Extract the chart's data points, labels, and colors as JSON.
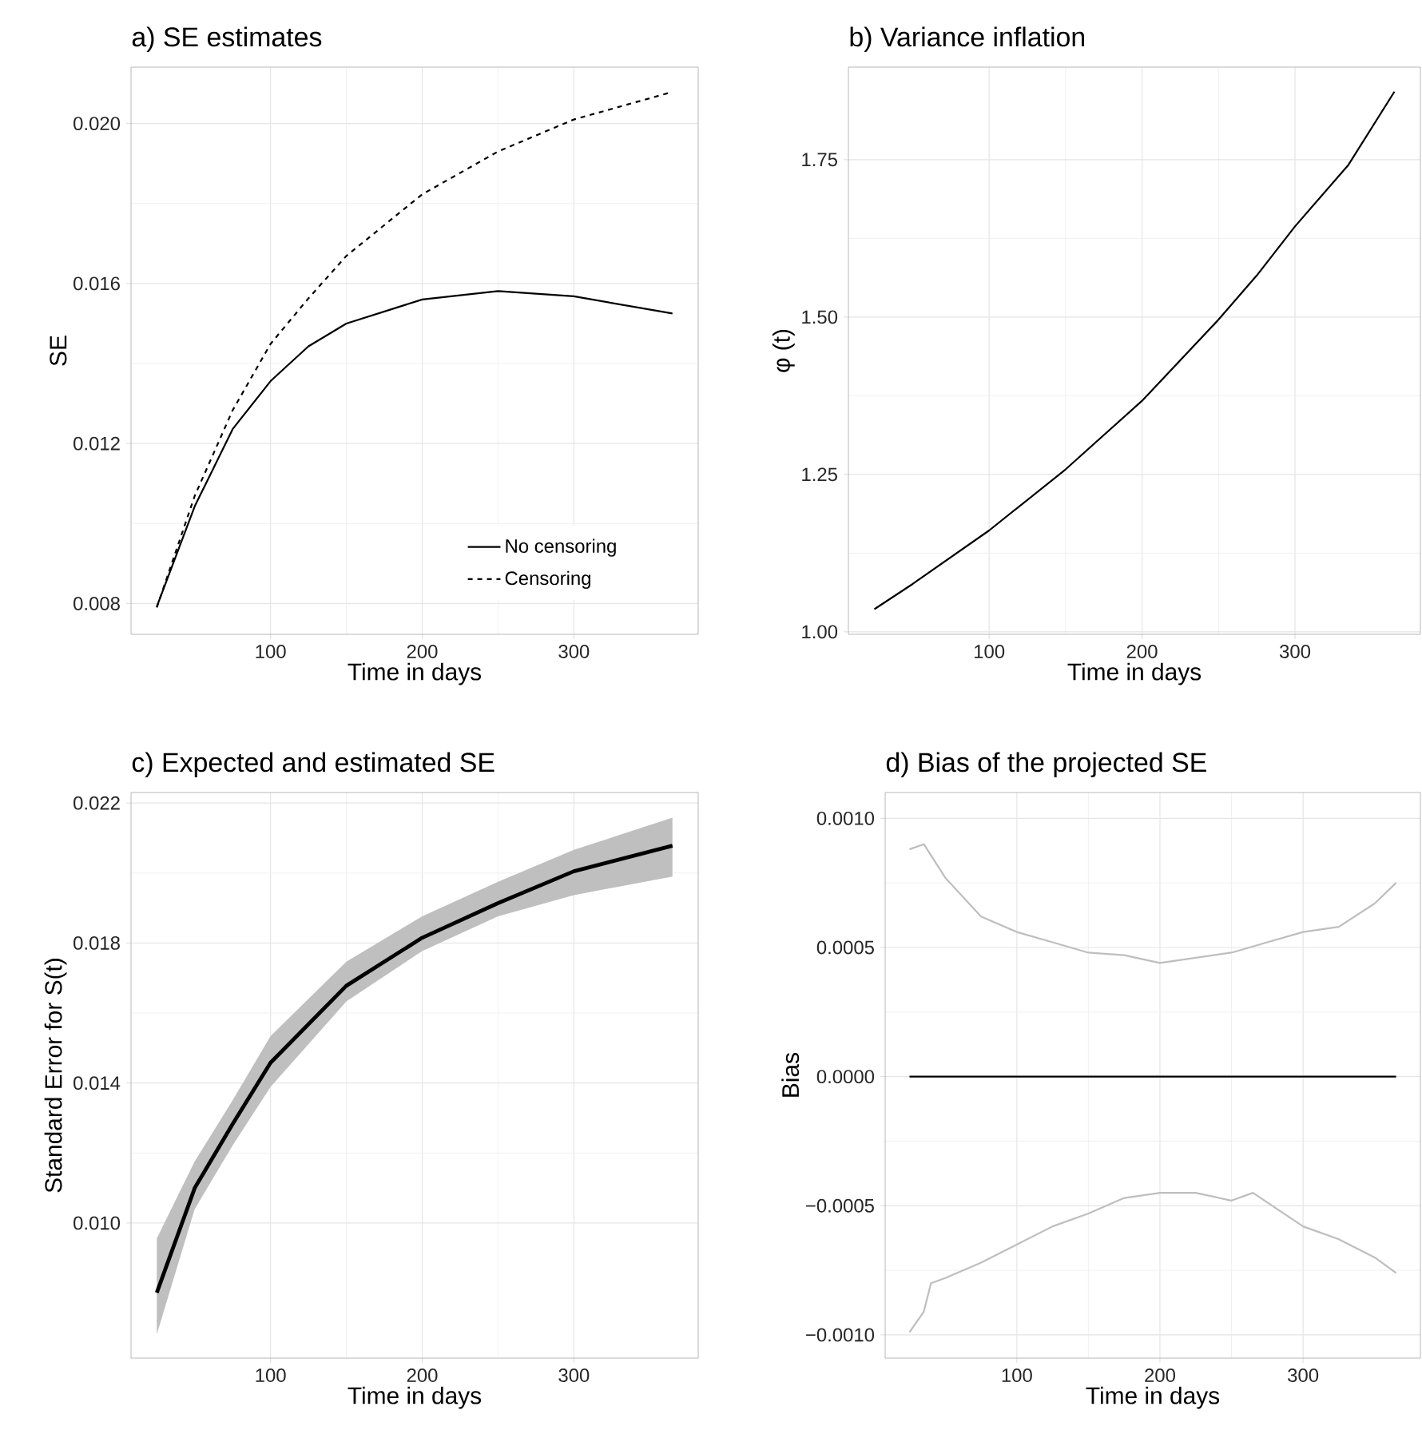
{
  "chart_data": [
    {
      "type": "line",
      "title": "a) SE estimates",
      "xlabel": "Time in days",
      "ylabel": "SE",
      "grid": true,
      "legend": "bottom right",
      "xlim": [
        8,
        382
      ],
      "xticks": [
        100,
        200,
        300
      ],
      "ylim": [
        0.00723,
        0.02141
      ],
      "yticks": [
        {
          "value": 0.008,
          "label": "0.008"
        },
        {
          "value": 0.012,
          "label": "0.012"
        },
        {
          "value": 0.016,
          "label": "0.016"
        },
        {
          "value": 0.02,
          "label": "0.020"
        }
      ],
      "series": [
        {
          "name": "No censoring",
          "color": "#000000",
          "line_style": "solid",
          "x": [
            25,
            50,
            75,
            100,
            125,
            150,
            200,
            250,
            300,
            365
          ],
          "values": [
            0.00792,
            0.01043,
            0.01236,
            0.01356,
            0.01443,
            0.015,
            0.0156,
            0.01581,
            0.01568,
            0.01525
          ]
        },
        {
          "name": "Censoring",
          "color": "#000000",
          "line_style": "dashed",
          "x": [
            25,
            50,
            75,
            100,
            125,
            150,
            200,
            250,
            300,
            365
          ],
          "values": [
            0.0079,
            0.01069,
            0.01283,
            0.01449,
            0.01563,
            0.01669,
            0.01823,
            0.0193,
            0.0201,
            0.02079
          ]
        }
      ]
    },
    {
      "type": "line",
      "title": "b) Variance inflation",
      "xlabel": "Time in days",
      "ylabel": "φ (t)",
      "grid": true,
      "xlim": [
        8,
        382
      ],
      "xticks": [
        100,
        200,
        300
      ],
      "ylim": [
        0.996,
        1.897
      ],
      "yticks": [
        {
          "value": 1.0,
          "label": "1.00"
        },
        {
          "value": 1.25,
          "label": "1.25"
        },
        {
          "value": 1.5,
          "label": "1.50"
        },
        {
          "value": 1.75,
          "label": "1.75"
        }
      ],
      "series": [
        {
          "color": "#000000",
          "x": [
            25,
            50,
            100,
            150,
            200,
            250,
            275,
            300,
            335,
            365
          ],
          "values": [
            1.036,
            1.076,
            1.161,
            1.258,
            1.367,
            1.496,
            1.566,
            1.644,
            1.742,
            1.858
          ]
        }
      ]
    },
    {
      "type": "line",
      "title": "c) Expected and estimated SE",
      "xlabel": "Time in days",
      "ylabel": "Standard Error for S(t)",
      "grid": true,
      "xlim": [
        8,
        382
      ],
      "xticks": [
        100,
        200,
        300
      ],
      "ylim": [
        0.00614,
        0.0223
      ],
      "yticks": [
        {
          "value": 0.01,
          "label": "0.010"
        },
        {
          "value": 0.014,
          "label": "0.014"
        },
        {
          "value": 0.018,
          "label": "0.018"
        },
        {
          "value": 0.022,
          "label": "0.022"
        }
      ],
      "series": [
        {
          "color": "#000000",
          "x": [
            25,
            50,
            75,
            100,
            150,
            200,
            250,
            300,
            365
          ],
          "values": [
            0.00801,
            0.011,
            0.01283,
            0.01458,
            0.01678,
            0.01815,
            0.01914,
            0.02005,
            0.02078
          ],
          "lower": [
            0.00682,
            0.0104,
            0.01222,
            0.01389,
            0.01633,
            0.01777,
            0.01876,
            0.01937,
            0.0199
          ],
          "upper": [
            0.00956,
            0.01176,
            0.01351,
            0.01534,
            0.01747,
            0.01876,
            0.01975,
            0.02066,
            0.02158
          ]
        }
      ]
    },
    {
      "type": "line",
      "title": "d) Bias of the projected SE",
      "xlabel": "Time in days",
      "ylabel": "Bias",
      "grid": true,
      "xlim": [
        8,
        382
      ],
      "xticks": [
        100,
        200,
        300
      ],
      "ylim": [
        -0.00109,
        0.0011
      ],
      "yticks": [
        {
          "value": -0.001,
          "label": "−0.0010"
        },
        {
          "value": -0.0005,
          "label": "−0.0005"
        },
        {
          "value": 0,
          "label": "0.0000"
        },
        {
          "value": 0.0005,
          "label": "0.0005"
        },
        {
          "value": 0.001,
          "label": "0.0010"
        }
      ],
      "series": [
        {
          "color": "#bebebe",
          "x": [
            25,
            35,
            50,
            75,
            100,
            125,
            150,
            175,
            200,
            225,
            250,
            275,
            300,
            325,
            350,
            365
          ],
          "values": [
            0.00088,
            0.0009,
            0.00077,
            0.00062,
            0.00056,
            0.00052,
            0.00048,
            0.00047,
            0.00044,
            0.00046,
            0.00048,
            0.00052,
            0.00056,
            0.00058,
            0.00067,
            0.00075
          ]
        },
        {
          "color": "#000000",
          "x": [
            25,
            50,
            100,
            150,
            200,
            250,
            300,
            365
          ],
          "values": [
            0,
            0,
            0,
            0,
            0,
            0,
            0,
            0
          ]
        },
        {
          "color": "#bebebe",
          "x": [
            25,
            35,
            40,
            50,
            75,
            100,
            125,
            150,
            175,
            200,
            225,
            250,
            265,
            300,
            325,
            350,
            365
          ],
          "values": [
            -0.00099,
            -0.00091,
            -0.0008,
            -0.00078,
            -0.00072,
            -0.00065,
            -0.00058,
            -0.00053,
            -0.00047,
            -0.00045,
            -0.00045,
            -0.00048,
            -0.00045,
            -0.00058,
            -0.00063,
            -0.0007,
            -0.00076
          ]
        }
      ]
    }
  ]
}
